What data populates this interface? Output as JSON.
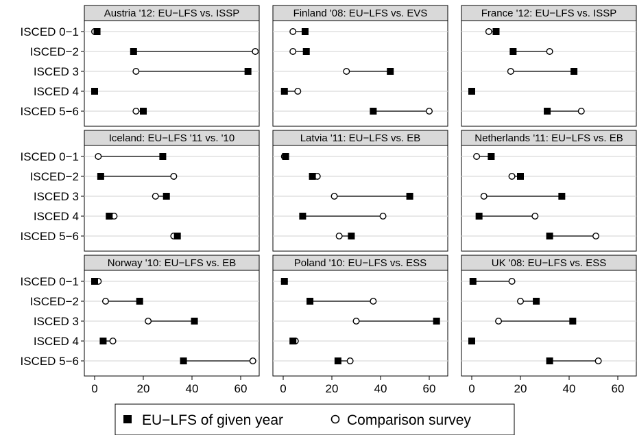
{
  "chart_data": {
    "type": "dot-range",
    "categories": [
      "ISCED 0−1",
      "ISCED−2",
      "ISCED 3",
      "ISCED 4",
      "ISCED 5−6"
    ],
    "x_ticks": [
      0,
      20,
      40,
      60
    ],
    "xlim": [
      -3,
      70
    ],
    "grid": true,
    "legend": {
      "placement": "bottom",
      "items": [
        {
          "marker": "filled-square",
          "label": "EU−LFS of given year"
        },
        {
          "marker": "hollow-circle",
          "label": "Comparison survey"
        }
      ]
    },
    "panels": [
      {
        "title": "Austria '12: EU−LFS vs. ISSP",
        "eu_lfs": [
          1,
          16,
          63,
          0,
          20
        ],
        "comparison": [
          0,
          66,
          17,
          0,
          17
        ]
      },
      {
        "title": "Finland '08: EU−LFS vs. EVS",
        "eu_lfs": [
          9,
          9.5,
          44,
          0.5,
          37
        ],
        "comparison": [
          4,
          4,
          26,
          6,
          60
        ]
      },
      {
        "title": "France '12: EU−LFS vs. ISSP",
        "eu_lfs": [
          10,
          17,
          42,
          0,
          31
        ],
        "comparison": [
          7,
          32,
          16,
          0,
          45
        ]
      },
      {
        "title": "Iceland: EU−LFS '11 vs. '10",
        "eu_lfs": [
          28,
          2.5,
          29.5,
          6,
          34
        ],
        "comparison": [
          1.5,
          32.5,
          25,
          8,
          32.5
        ]
      },
      {
        "title": "Latvia '11: EU−LFS vs. EB",
        "eu_lfs": [
          1,
          12,
          52,
          8,
          28
        ],
        "comparison": [
          0.5,
          14,
          21,
          41,
          23
        ]
      },
      {
        "title": "Netherlands '11: EU−LFS vs. EB",
        "eu_lfs": [
          8,
          20,
          37,
          3,
          32
        ],
        "comparison": [
          2,
          16.5,
          5,
          26,
          51
        ]
      },
      {
        "title": "Norway '10: EU−LFS vs. EB",
        "eu_lfs": [
          0,
          18.5,
          41,
          3.5,
          36.5
        ],
        "comparison": [
          1.5,
          4.5,
          22,
          7.5,
          65
        ]
      },
      {
        "title": "Poland '10: EU−LFS vs. ESS",
        "eu_lfs": [
          0.5,
          11,
          63,
          4,
          22.5
        ],
        "comparison": [
          0.5,
          37,
          30,
          5,
          27.5
        ]
      },
      {
        "title": "UK '08: EU−LFS vs. ESS",
        "eu_lfs": [
          0.5,
          26.5,
          41.5,
          0,
          32
        ],
        "comparison": [
          16.5,
          20,
          11,
          0,
          52
        ]
      }
    ]
  }
}
